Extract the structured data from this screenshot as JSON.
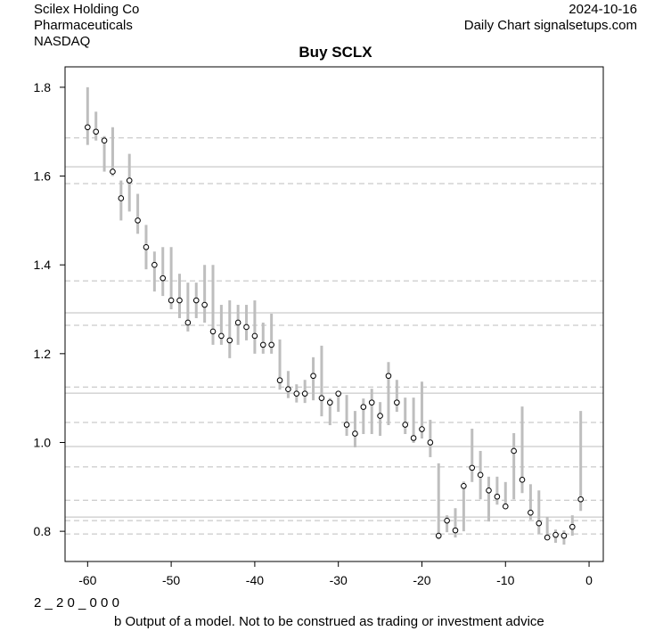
{
  "header": {
    "company": "Scilex Holding Co",
    "sector": "Pharmaceuticals",
    "exchange": "NASDAQ",
    "date": "2024-10-16",
    "source": "Daily Chart signalsetups.com"
  },
  "footer": {
    "code": "2 _ 2 0 _ 0 0 0",
    "disclaimer": "b Output of a model. Not to be construed as trading or investment advice"
  },
  "chart_data": {
    "type": "scatter",
    "title": "Buy SCLX",
    "xlabel": "",
    "ylabel": "",
    "xlim": [
      -62.7,
      1.7
    ],
    "ylim": [
      0.732,
      1.846
    ],
    "xticks": [
      -60,
      -50,
      -40,
      -30,
      -20,
      -10,
      0
    ],
    "yticks": [
      0.8,
      1.0,
      1.2,
      1.4,
      1.6,
      1.8
    ],
    "grid": false,
    "colors": {
      "range": "#bebebe",
      "point": "#000000",
      "line": "#bebebe"
    },
    "solid_levels": [
      1.621,
      1.292,
      1.111,
      0.991,
      0.832
    ],
    "dashed_levels": [
      1.686,
      1.583,
      1.364,
      1.264,
      1.125,
      1.045,
      0.945,
      0.87,
      0.824,
      0.794
    ],
    "x": [
      -60,
      -59,
      -58,
      -57,
      -56,
      -55,
      -54,
      -53,
      -52,
      -51,
      -50,
      -49,
      -48,
      -47,
      -46,
      -45,
      -44,
      -43,
      -42,
      -41,
      -40,
      -39,
      -38,
      -37,
      -36,
      -35,
      -34,
      -33,
      -32,
      -31,
      -30,
      -29,
      -28,
      -27,
      -26,
      -25,
      -24,
      -23,
      -22,
      -21,
      -20,
      -19,
      -18,
      -17,
      -16,
      -15,
      -14,
      -13,
      -12,
      -11,
      -10,
      -9,
      -8,
      -7,
      -6,
      -5,
      -4,
      -3,
      -2,
      -1
    ],
    "close": [
      1.71,
      1.7,
      1.68,
      1.61,
      1.55,
      1.59,
      1.5,
      1.44,
      1.4,
      1.37,
      1.32,
      1.32,
      1.27,
      1.32,
      1.31,
      1.25,
      1.24,
      1.23,
      1.27,
      1.26,
      1.24,
      1.22,
      1.22,
      1.14,
      1.12,
      1.11,
      1.11,
      1.15,
      1.1,
      1.09,
      1.11,
      1.04,
      1.02,
      1.08,
      1.09,
      1.06,
      1.15,
      1.09,
      1.04,
      1.01,
      1.03,
      1.0,
      0.79,
      0.824,
      0.802,
      0.902,
      0.943,
      0.927,
      0.892,
      0.878,
      0.856,
      0.981,
      0.916,
      0.842,
      0.818,
      0.786,
      0.792,
      0.79,
      0.81,
      0.872
    ],
    "high": [
      1.8,
      1.745,
      1.69,
      1.71,
      1.59,
      1.65,
      1.56,
      1.49,
      1.43,
      1.44,
      1.44,
      1.38,
      1.36,
      1.36,
      1.4,
      1.4,
      1.31,
      1.32,
      1.31,
      1.31,
      1.32,
      1.27,
      1.29,
      1.232,
      1.161,
      1.131,
      1.141,
      1.192,
      1.218,
      1.1,
      1.111,
      1.107,
      1.071,
      1.099,
      1.121,
      1.091,
      1.181,
      1.141,
      1.101,
      1.101,
      1.137,
      1.051,
      0.953,
      0.836,
      0.852,
      0.912,
      1.031,
      0.981,
      0.923,
      0.923,
      0.911,
      1.021,
      1.081,
      0.906,
      0.892,
      0.832,
      0.804,
      0.802,
      0.836,
      1.071
    ],
    "low": [
      1.67,
      1.68,
      1.61,
      1.6,
      1.5,
      1.52,
      1.47,
      1.39,
      1.34,
      1.33,
      1.3,
      1.28,
      1.25,
      1.28,
      1.27,
      1.22,
      1.22,
      1.19,
      1.22,
      1.23,
      1.2,
      1.2,
      1.2,
      1.119,
      1.1,
      1.09,
      1.089,
      1.095,
      1.059,
      1.039,
      1.069,
      1.015,
      0.989,
      1.019,
      1.019,
      1.015,
      1.039,
      1.069,
      1.019,
      0.999,
      1.009,
      0.967,
      0.782,
      0.798,
      0.786,
      0.8,
      0.911,
      0.872,
      0.822,
      0.86,
      0.856,
      0.872,
      0.886,
      0.826,
      0.794,
      0.786,
      0.774,
      0.77,
      0.79,
      0.846
    ]
  }
}
